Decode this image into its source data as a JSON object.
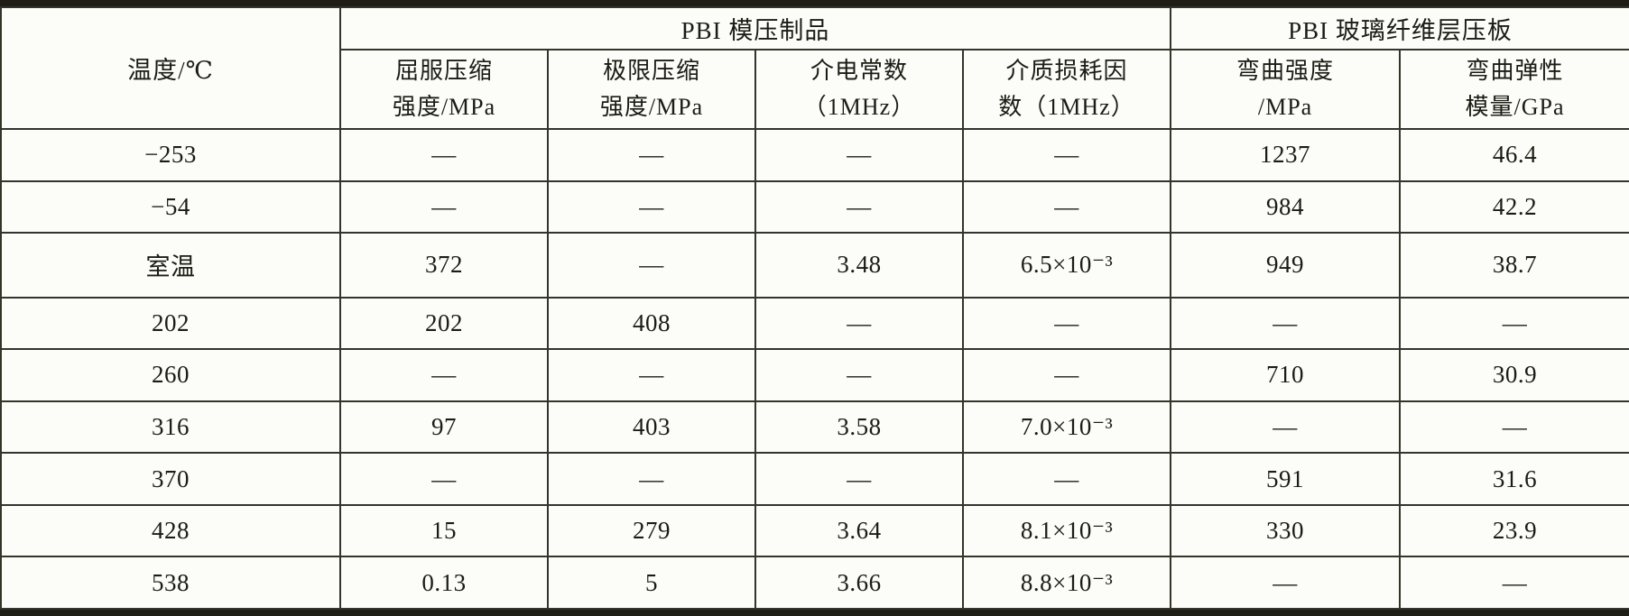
{
  "colors": {
    "background": "#fcfcf8",
    "rule_thin": "#34342b",
    "rule_thick": "#1d1d16",
    "text": "#1c1c15"
  },
  "table": {
    "header": {
      "temperature": "温度/℃",
      "groups": [
        {
          "label": "PBI 模压制品"
        },
        {
          "label": "PBI 玻璃纤维层压板"
        }
      ],
      "columns": [
        "屈服压缩\n强度/MPa",
        "极限压缩\n强度/MPa",
        "介电常数\n（1MHz）",
        "介质损耗因\n数（1MHz）",
        "弯曲强度\n/MPa",
        "弯曲弹性\n模量/GPa"
      ]
    },
    "rows": [
      [
        "−253",
        "—",
        "—",
        "—",
        "—",
        "1237",
        "46.4"
      ],
      [
        "−54",
        "—",
        "—",
        "—",
        "—",
        "984",
        "42.2"
      ],
      [
        "室温",
        "372",
        "—",
        "3.48",
        "6.5×10⁻³",
        "949",
        "38.7"
      ],
      [
        "202",
        "202",
        "408",
        "—",
        "—",
        "—",
        "—"
      ],
      [
        "260",
        "—",
        "—",
        "—",
        "—",
        "710",
        "30.9"
      ],
      [
        "316",
        "97",
        "403",
        "3.58",
        "7.0×10⁻³",
        "—",
        "—"
      ],
      [
        "370",
        "—",
        "—",
        "—",
        "—",
        "591",
        "31.6"
      ],
      [
        "428",
        "15",
        "279",
        "3.64",
        "8.1×10⁻³",
        "330",
        "23.9"
      ],
      [
        "538",
        "0.13",
        "5",
        "3.66",
        "8.8×10⁻³",
        "—",
        "—"
      ]
    ]
  }
}
